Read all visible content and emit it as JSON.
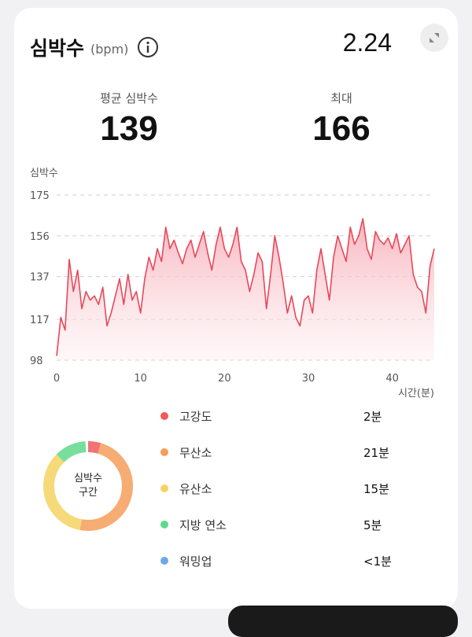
{
  "header": {
    "title": "심박수",
    "unit": "(bpm)",
    "date": "2.24"
  },
  "stats": {
    "avg_label": "평균 심박수",
    "avg_value": "139",
    "max_label": "최대",
    "max_value": "166"
  },
  "chart_data": {
    "type": "area",
    "ylabel": "심박수",
    "xlabel": "시간(분)",
    "yticks": [
      98,
      117,
      137,
      156,
      175
    ],
    "xticks": [
      0,
      10,
      20,
      30,
      40
    ],
    "ylim": [
      98,
      175
    ],
    "xlim": [
      0,
      45
    ],
    "grid": "dashed horizontal",
    "line_color": "#e8485a",
    "fill_color": "#fbd4d9",
    "x": [
      0,
      0.5,
      1,
      1.5,
      2,
      2.5,
      3,
      3.5,
      4,
      4.5,
      5,
      5.5,
      6,
      6.5,
      7,
      7.5,
      8,
      8.5,
      9,
      9.5,
      10,
      10.5,
      11,
      11.5,
      12,
      12.5,
      13,
      13.5,
      14,
      14.5,
      15,
      15.5,
      16,
      16.5,
      17,
      17.5,
      18,
      18.5,
      19,
      19.5,
      20,
      20.5,
      21,
      21.5,
      22,
      22.5,
      23,
      23.5,
      24,
      24.5,
      25,
      25.5,
      26,
      26.5,
      27,
      27.5,
      28,
      28.5,
      29,
      29.5,
      30,
      30.5,
      31,
      31.5,
      32,
      32.5,
      33,
      33.5,
      34,
      34.5,
      35,
      35.5,
      36,
      36.5,
      37,
      37.5,
      38,
      38.5,
      39,
      39.5,
      40,
      40.5,
      41,
      41.5,
      42,
      42.5,
      43,
      43.5,
      44,
      44.5,
      45
    ],
    "values": [
      100,
      118,
      112,
      145,
      130,
      140,
      122,
      130,
      126,
      128,
      124,
      132,
      114,
      120,
      128,
      136,
      124,
      138,
      126,
      130,
      120,
      136,
      146,
      140,
      150,
      144,
      160,
      150,
      154,
      148,
      143,
      150,
      154,
      146,
      152,
      158,
      148,
      140,
      152,
      160,
      150,
      146,
      152,
      160,
      144,
      140,
      130,
      138,
      148,
      144,
      122,
      138,
      156,
      146,
      134,
      120,
      128,
      118,
      114,
      126,
      128,
      120,
      140,
      150,
      138,
      126,
      146,
      156,
      150,
      144,
      160,
      152,
      156,
      164,
      150,
      145,
      158,
      154,
      152,
      155,
      150,
      157,
      148,
      152,
      156,
      138,
      132,
      130,
      120,
      142,
      150
    ],
    "zones": [
      {
        "name": "고강도",
        "time": "2분",
        "color": "#f05a5a"
      },
      {
        "name": "무산소",
        "time": "21분",
        "color": "#f59e5a"
      },
      {
        "name": "유산소",
        "time": "15분",
        "color": "#f5d262"
      },
      {
        "name": "지방 연소",
        "time": "5분",
        "color": "#5ed98a"
      },
      {
        "name": "워밍업",
        "time": "<1분",
        "color": "#6fa8e8"
      }
    ]
  },
  "zone_panel": {
    "donut_label_1": "심박수",
    "donut_label_2": "구간"
  }
}
